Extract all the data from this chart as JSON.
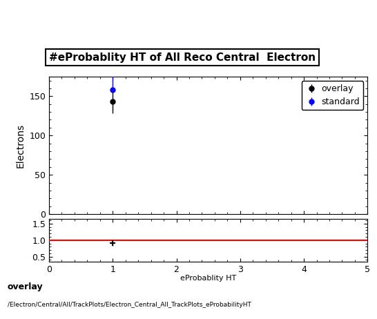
{
  "title": "#eProbablity HT of All Reco Central  Electron",
  "ylabel_main": "Electrons",
  "xlabel": "eProbablity HT",
  "xlim": [
    0,
    5
  ],
  "ylim_main": [
    0,
    175
  ],
  "ylim_ratio": [
    0.35,
    1.65
  ],
  "overlay_x": [
    1.0
  ],
  "overlay_y": [
    143.0
  ],
  "overlay_yerr_lo": [
    15.0
  ],
  "overlay_yerr_hi": [
    15.0
  ],
  "standard_x": [
    1.0
  ],
  "standard_y": [
    158.0
  ],
  "standard_yerr_lo": [
    0
  ],
  "standard_yerr_hi": [
    30.0
  ],
  "ratio_x": [
    1.0
  ],
  "ratio_y": [
    0.91
  ],
  "ratio_yerr": [
    0.08
  ],
  "overlay_color": "#000000",
  "standard_color": "#0000ff",
  "ratio_line_color": "#ff0000",
  "footer_line1": "overlay",
  "footer_line2": "/Electron/Central/All/TrackPlots/Electron_Central_All_TrackPlots_eProbabilityHT",
  "main_yticks": [
    0,
    50,
    100,
    150
  ],
  "ratio_yticks": [
    0.5,
    1.0,
    1.5
  ],
  "xticks_main": [
    0,
    1,
    2,
    3,
    4,
    5
  ],
  "xticks_ratio": [
    0,
    1,
    2,
    3,
    4,
    5
  ]
}
